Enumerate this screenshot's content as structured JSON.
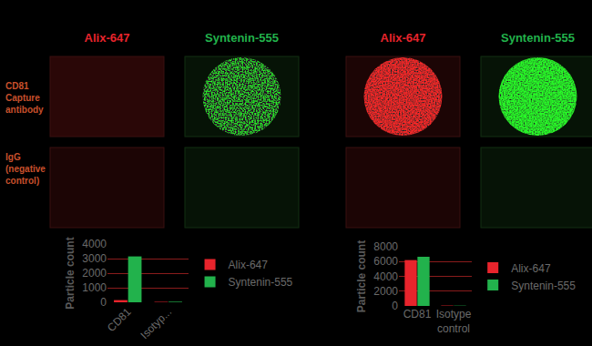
{
  "image_panels": [
    {
      "columns": [
        "Alix-647",
        "Syntenin-555"
      ]
    },
    {
      "columns": [
        "Alix-647",
        "Syntenin-555"
      ]
    }
  ],
  "row_labels": [
    "CD81 Capture antibody",
    "IgG (negative control)"
  ],
  "chart_data": [
    {
      "type": "bar",
      "ylabel": "Particle count",
      "categories": [
        "CD81",
        "Isotyp..."
      ],
      "series": [
        {
          "name": "Alix-647",
          "color": "#e8242c",
          "values": [
            150,
            30
          ]
        },
        {
          "name": "Syntenin-555",
          "color": "#22b24c",
          "values": [
            3150,
            40
          ]
        }
      ],
      "ylim": [
        0,
        4000
      ],
      "yticks": [
        0,
        1000,
        2000,
        3000,
        4000
      ],
      "grid": true,
      "legend": "right"
    },
    {
      "type": "bar",
      "ylabel": "Particle count",
      "categories": [
        "CD81",
        "Isotype control"
      ],
      "series": [
        {
          "name": "Alix-647",
          "color": "#e8242c",
          "values": [
            6200,
            50
          ]
        },
        {
          "name": "Syntenin-555",
          "color": "#22b24c",
          "values": [
            6650,
            40
          ]
        }
      ],
      "ylim": [
        0,
        8000
      ],
      "yticks": [
        0,
        2000,
        4000,
        6000,
        8000
      ],
      "grid": true,
      "legend": "right"
    }
  ]
}
